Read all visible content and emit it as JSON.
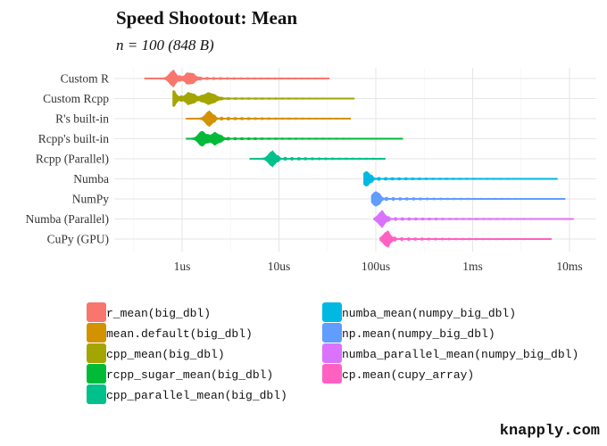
{
  "chart_data": {
    "type": "violin",
    "title": "Speed Shootout: Mean",
    "subtitle": "n = 100 (848 B)",
    "xlabel": "",
    "ylabel": "",
    "x_scale": "log10",
    "x_unit": "seconds",
    "x_ticks": [
      {
        "value": 1e-06,
        "label": "1us"
      },
      {
        "value": 1e-05,
        "label": "10us"
      },
      {
        "value": 0.0001,
        "label": "100us"
      },
      {
        "value": 0.001,
        "label": "1ms"
      },
      {
        "value": 0.01,
        "label": "10ms"
      }
    ],
    "grid": true,
    "legend_placement": "bottom",
    "categories": [
      "Custom R",
      "Custom Rcpp",
      "R's built-in",
      "Rcpp's built-in",
      "Rcpp (Parallel)",
      "Numba",
      "NumPy",
      "Numba (Parallel)",
      "CuPy (GPU)"
    ],
    "series": [
      {
        "category": "Custom R",
        "legend": "r_mean(big_dbl)",
        "color": "#F8766D",
        "min": 4.1e-07,
        "max": 3.3e-05,
        "modes": [
          8e-07,
          1.2e-06
        ]
      },
      {
        "category": "Custom Rcpp",
        "legend": "cpp_mean(big_dbl)",
        "color": "#A3A500",
        "min": 8e-07,
        "max": 6e-05,
        "modes": [
          8e-07,
          1.2e-06,
          1.9e-06
        ]
      },
      {
        "category": "R's built-in",
        "legend": "mean.default(big_dbl)",
        "color": "#D39200",
        "min": 1.1e-06,
        "max": 5.5e-05,
        "modes": [
          1.9e-06
        ]
      },
      {
        "category": "Rcpp's built-in",
        "legend": "rcpp_sugar_mean(big_dbl)",
        "color": "#00BA38",
        "min": 1.1e-06,
        "max": 0.00019,
        "modes": [
          1.6e-06,
          2.2e-06
        ]
      },
      {
        "category": "Rcpp (Parallel)",
        "legend": "cpp_parallel_mean(big_dbl)",
        "color": "#00C08B",
        "min": 5e-06,
        "max": 0.000125,
        "modes": [
          8.5e-06
        ]
      },
      {
        "category": "Numba",
        "legend": "numba_mean(numpy_big_dbl)",
        "color": "#00B9E3",
        "min": 7.5e-05,
        "max": 0.0075,
        "modes": [
          8e-05
        ]
      },
      {
        "category": "NumPy",
        "legend": "np.mean(numpy_big_dbl)",
        "color": "#619CFF",
        "min": 9e-05,
        "max": 0.009,
        "modes": [
          0.0001
        ]
      },
      {
        "category": "Numba (Parallel)",
        "legend": "numba_parallel_mean(numpy_big_dbl)",
        "color": "#DB72FB",
        "min": 9.5e-05,
        "max": 0.011,
        "modes": [
          0.000115
        ]
      },
      {
        "category": "CuPy (GPU)",
        "legend": "cp.mean(cupy_array)",
        "color": "#FF61C3",
        "min": 0.00011,
        "max": 0.0065,
        "modes": [
          0.00013
        ]
      }
    ],
    "legend_order": [
      "r_mean(big_dbl)",
      "mean.default(big_dbl)",
      "cpp_mean(big_dbl)",
      "rcpp_sugar_mean(big_dbl)",
      "cpp_parallel_mean(big_dbl)",
      "numba_mean(numpy_big_dbl)",
      "np.mean(numpy_big_dbl)",
      "numba_parallel_mean(numpy_big_dbl)",
      "cp.mean(cupy_array)"
    ],
    "caption": "knapply.com"
  }
}
